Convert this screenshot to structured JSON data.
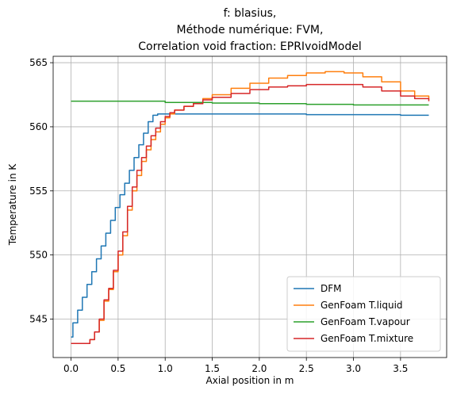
{
  "chart_data": {
    "type": "line",
    "step": true,
    "title_lines": [
      "f: blasius,",
      "Méthode numérique: FVM,",
      "Correlation void fraction: EPRIvoidModel"
    ],
    "xlabel": "Axial position in m",
    "ylabel": "Temperature in K",
    "xlim": [
      -0.19,
      3.99
    ],
    "ylim": [
      542.0,
      565.5
    ],
    "xticks": [
      0.0,
      0.5,
      1.0,
      1.5,
      2.0,
      2.5,
      3.0,
      3.5
    ],
    "xtick_labels": [
      "0.0",
      "0.5",
      "1.0",
      "1.5",
      "2.0",
      "2.5",
      "3.0",
      "3.5"
    ],
    "yticks": [
      545,
      550,
      555,
      560,
      565
    ],
    "ytick_labels": [
      "545",
      "550",
      "555",
      "560",
      "565"
    ],
    "grid": true,
    "legend_position": "lower-right",
    "series": [
      {
        "name": "DFM",
        "color": "#1f77b4",
        "x": [
          0.0,
          0.02,
          0.07,
          0.12,
          0.17,
          0.22,
          0.27,
          0.32,
          0.37,
          0.42,
          0.47,
          0.52,
          0.57,
          0.62,
          0.67,
          0.72,
          0.77,
          0.82,
          0.87,
          0.92,
          0.97,
          1.02,
          1.2,
          1.5,
          2.0,
          2.5,
          3.0,
          3.5,
          3.8
        ],
        "y": [
          543.6,
          544.7,
          545.7,
          546.7,
          547.7,
          548.7,
          549.7,
          550.7,
          551.7,
          552.7,
          553.7,
          554.7,
          555.6,
          556.6,
          557.6,
          558.6,
          559.5,
          560.4,
          560.9,
          561.0,
          561.0,
          561.0,
          561.0,
          561.0,
          561.0,
          560.95,
          560.95,
          560.9,
          560.9
        ]
      },
      {
        "name": "GenFoam T.liquid",
        "color": "#ff7f0e",
        "x": [
          0.0,
          0.1,
          0.2,
          0.25,
          0.3,
          0.35,
          0.4,
          0.45,
          0.5,
          0.55,
          0.6,
          0.65,
          0.7,
          0.75,
          0.8,
          0.85,
          0.9,
          0.95,
          1.0,
          1.05,
          1.1,
          1.2,
          1.3,
          1.4,
          1.5,
          1.7,
          1.9,
          2.1,
          2.3,
          2.5,
          2.7,
          2.9,
          3.1,
          3.3,
          3.5,
          3.65,
          3.8
        ],
        "y": [
          543.1,
          543.1,
          543.4,
          544.0,
          544.9,
          546.4,
          547.3,
          548.7,
          550.0,
          551.5,
          553.5,
          555.0,
          556.2,
          557.3,
          558.2,
          559.0,
          559.6,
          560.2,
          560.7,
          561.0,
          561.3,
          561.6,
          561.9,
          562.2,
          562.5,
          563.0,
          563.4,
          563.8,
          564.0,
          564.2,
          564.3,
          564.2,
          563.9,
          563.5,
          562.8,
          562.4,
          562.2
        ]
      },
      {
        "name": "GenFoam T.vapour",
        "color": "#2ca02c",
        "x": [
          0.0,
          0.5,
          1.0,
          1.5,
          2.0,
          2.5,
          3.0,
          3.5,
          3.8
        ],
        "y": [
          562.0,
          562.0,
          561.9,
          561.85,
          561.8,
          561.75,
          561.7,
          561.7,
          561.7
        ]
      },
      {
        "name": "GenFoam T.mixture",
        "color": "#d62728",
        "x": [
          0.0,
          0.1,
          0.2,
          0.25,
          0.3,
          0.35,
          0.4,
          0.45,
          0.5,
          0.55,
          0.6,
          0.65,
          0.7,
          0.75,
          0.8,
          0.85,
          0.9,
          0.95,
          1.0,
          1.05,
          1.1,
          1.2,
          1.3,
          1.4,
          1.5,
          1.7,
          1.9,
          2.1,
          2.3,
          2.5,
          2.7,
          2.9,
          3.1,
          3.3,
          3.5,
          3.65,
          3.8
        ],
        "y": [
          543.1,
          543.1,
          543.4,
          544.0,
          545.0,
          546.5,
          547.4,
          548.8,
          550.3,
          551.8,
          553.8,
          555.3,
          556.6,
          557.6,
          558.5,
          559.3,
          559.9,
          560.4,
          560.8,
          561.1,
          561.3,
          561.6,
          561.8,
          562.1,
          562.3,
          562.6,
          562.9,
          563.1,
          563.2,
          563.3,
          563.3,
          563.3,
          563.1,
          562.8,
          562.4,
          562.2,
          562.0
        ]
      }
    ]
  }
}
